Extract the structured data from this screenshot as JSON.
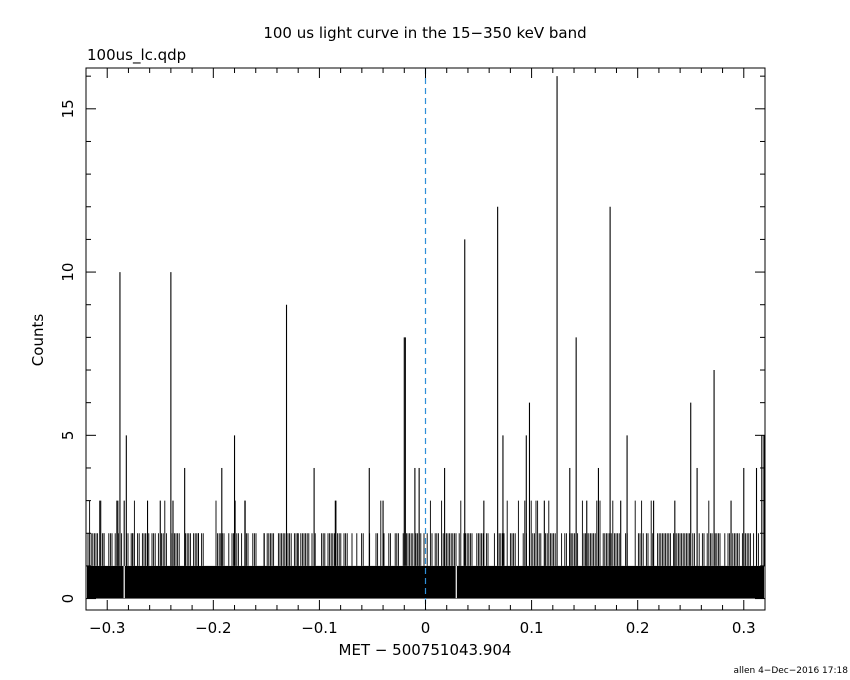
{
  "chart_data": {
    "type": "line",
    "title": "100 us light curve in the 15−350 keV band",
    "subtitle": "100us_lc.qdp",
    "xlabel": "MET − 500751043.904",
    "ylabel": "Counts",
    "footer": "allen  4−Dec−2016 17:18",
    "xlim": [
      -0.32,
      0.32
    ],
    "ylim": [
      -0.35,
      16.25
    ],
    "x_ticks": [
      -0.3,
      -0.2,
      -0.1,
      0,
      0.1,
      0.2,
      0.3
    ],
    "x_tick_labels": [
      "−0.3",
      "−0.2",
      "−0.1",
      "0",
      "0.1",
      "0.2",
      "0.3"
    ],
    "y_ticks": [
      0,
      5,
      10,
      15
    ],
    "y_tick_labels": [
      "0",
      "5",
      "10",
      "15"
    ],
    "bin_width": 0.0001,
    "baseline_band": [
      0,
      1
    ],
    "trigger_line_x": 0,
    "series": [
      {
        "values_description_spikes": [
          [
            -0.307,
            3
          ],
          [
            -0.303,
            2
          ],
          [
            -0.29,
            3
          ],
          [
            -0.288,
            10
          ],
          [
            -0.284,
            3
          ],
          [
            -0.282,
            5
          ],
          [
            -0.276,
            2
          ],
          [
            -0.262,
            3
          ],
          [
            -0.25,
            3
          ],
          [
            -0.24,
            10
          ],
          [
            -0.238,
            3
          ],
          [
            -0.227,
            4
          ],
          [
            -0.214,
            2
          ],
          [
            -0.192,
            4
          ],
          [
            -0.18,
            5
          ],
          [
            -0.17,
            3
          ],
          [
            -0.152,
            2
          ],
          [
            -0.131,
            9
          ],
          [
            -0.12,
            2
          ],
          [
            -0.105,
            4
          ],
          [
            -0.085,
            3
          ],
          [
            -0.053,
            4
          ],
          [
            -0.04,
            3
          ],
          [
            -0.02,
            8
          ],
          [
            -0.019,
            8
          ],
          [
            -0.01,
            4
          ],
          [
            -0.006,
            4
          ],
          [
            0.018,
            4
          ],
          [
            0.037,
            11
          ],
          [
            0.055,
            3
          ],
          [
            0.068,
            12
          ],
          [
            0.073,
            5
          ],
          [
            0.095,
            5
          ],
          [
            0.098,
            6
          ],
          [
            0.112,
            3
          ],
          [
            0.124,
            16
          ],
          [
            0.136,
            4
          ],
          [
            0.142,
            8
          ],
          [
            0.152,
            3
          ],
          [
            0.163,
            4
          ],
          [
            0.174,
            12
          ],
          [
            0.184,
            3
          ],
          [
            0.19,
            5
          ],
          [
            0.215,
            3
          ],
          [
            0.235,
            3
          ],
          [
            0.25,
            6
          ],
          [
            0.256,
            4
          ],
          [
            0.272,
            7
          ],
          [
            0.288,
            3
          ],
          [
            0.3,
            4
          ],
          [
            0.312,
            4
          ],
          [
            0.317,
            5
          ],
          [
            0.319,
            5
          ]
        ]
      }
    ]
  },
  "colors": {
    "axes": "#000000",
    "data": "#000000",
    "trigger_line": "#2f8fd8",
    "background": "#ffffff"
  }
}
